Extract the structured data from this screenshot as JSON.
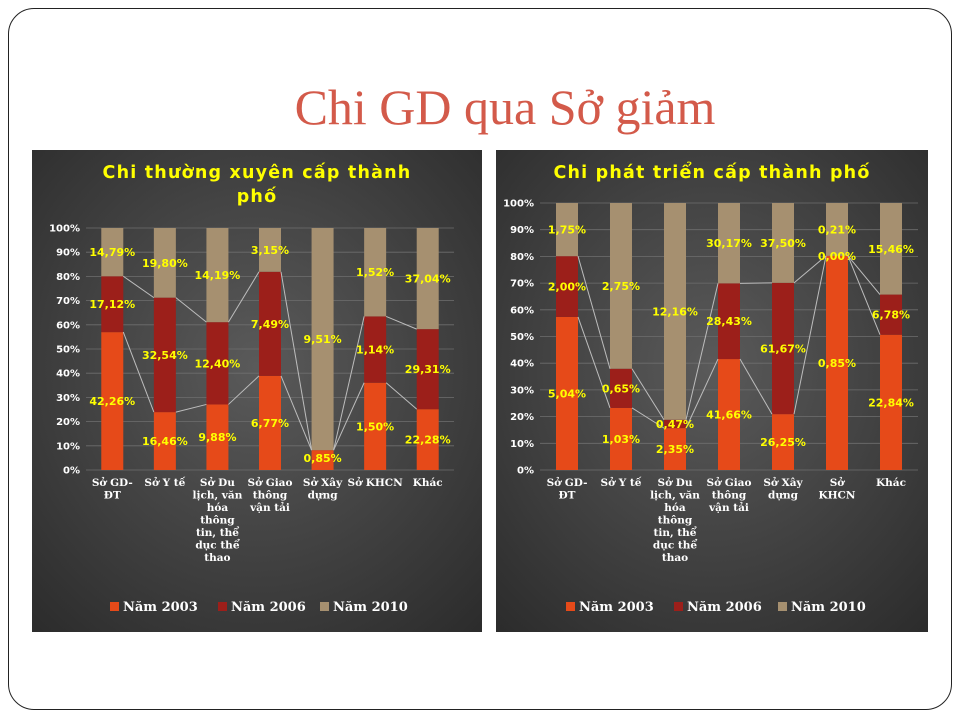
{
  "slide": {
    "title": "Chi GD qua Sở giảm"
  },
  "colors": {
    "series": [
      "#e64a19",
      "#9c1f1a",
      "#a69070"
    ],
    "label": "#ffff00",
    "text": "#ffffff"
  },
  "chart_data": [
    {
      "type": "bar",
      "stacked": "percent",
      "title": "Chi thường xuyên cấp thành phố",
      "xlabel": "",
      "ylabel": "",
      "ylim": [
        0,
        100
      ],
      "yticks": [
        "0%",
        "10%",
        "20%",
        "30%",
        "40%",
        "50%",
        "60%",
        "70%",
        "80%",
        "90%",
        "100%"
      ],
      "legend": "bottom",
      "grid": true,
      "categories": [
        "Sở GD-ĐT",
        "Sở Y tế",
        "Sở Du lịch, văn hóa thông tin, thể dục thể thao",
        "Sở Giao thông vận tải",
        "Sở Xây dựng",
        "Sở KHCN",
        "Khác"
      ],
      "series": [
        {
          "name": "Năm 2003",
          "values": [
            42.26,
            16.46,
            9.88,
            6.77,
            0.85,
            1.5,
            22.28
          ],
          "labels": [
            "42,26%",
            "16,46%",
            "9,88%",
            "6,77%",
            "0,85%",
            "1,50%",
            "22,28%"
          ]
        },
        {
          "name": "Năm 2006",
          "values": [
            17.12,
            32.54,
            12.4,
            7.49,
            0,
            1.14,
            29.31
          ],
          "labels": [
            "17,12%",
            "32,54%",
            "12,40%",
            "7,49%",
            "",
            "1,14%",
            "29,31%"
          ]
        },
        {
          "name": "Năm 2010",
          "values": [
            14.79,
            19.8,
            14.19,
            3.15,
            9.51,
            1.52,
            37.04
          ],
          "labels": [
            "14,79%",
            "19,80%",
            "14,19%",
            "3,15%",
            "9,51%",
            "1,52%",
            "37,04%"
          ]
        }
      ]
    },
    {
      "type": "bar",
      "stacked": "percent",
      "title": "Chi phát triển cấp thành phố",
      "xlabel": "",
      "ylabel": "",
      "ylim": [
        0,
        100
      ],
      "yticks": [
        "0%",
        "10%",
        "20%",
        "30%",
        "40%",
        "50%",
        "60%",
        "70%",
        "80%",
        "90%",
        "100%"
      ],
      "legend": "bottom",
      "grid": true,
      "categories": [
        "Sở GD-ĐT",
        "Sở Y tế",
        "Sở Du lịch, văn hóa thông tin, thể dục thể thao",
        "Sở Giao thông vận tải",
        "Sở Xây dựng",
        "Sở KHCN",
        "Khác"
      ],
      "series": [
        {
          "name": "Năm 2003",
          "values": [
            5.04,
            1.03,
            2.35,
            41.66,
            26.25,
            0.85,
            22.84
          ],
          "labels": [
            "5,04%",
            "1,03%",
            "2,35%",
            "41,66%",
            "26,25%",
            "0,85%",
            "22,84%"
          ]
        },
        {
          "name": "Năm 2006",
          "values": [
            2.0,
            0.65,
            0.47,
            28.43,
            61.67,
            0.0,
            6.78
          ],
          "labels": [
            "2,00%",
            "0,65%",
            "0,47%",
            "28,43%",
            "61,67%",
            "0,00%",
            "6,78%"
          ]
        },
        {
          "name": "Năm 2010",
          "values": [
            1.75,
            2.75,
            12.16,
            30.17,
            37.5,
            0.21,
            15.46
          ],
          "labels": [
            "1,75%",
            "2,75%",
            "12,16%",
            "30,17%",
            "37,50%",
            "0,21%",
            "15,46%"
          ]
        }
      ]
    }
  ]
}
